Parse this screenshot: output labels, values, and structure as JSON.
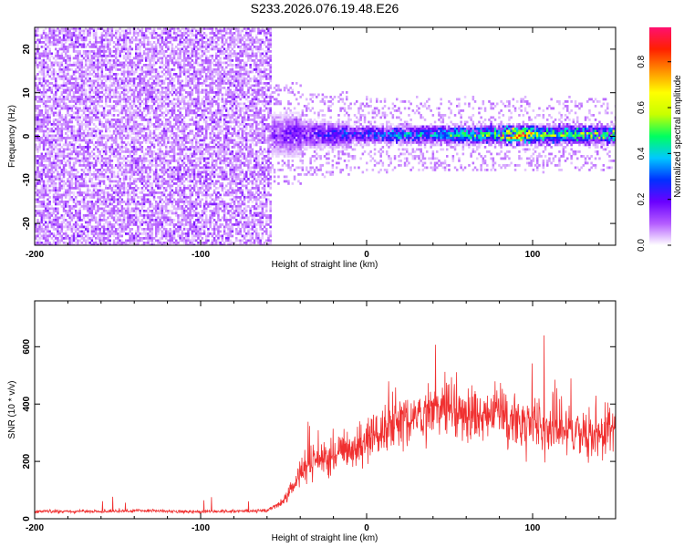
{
  "title": "S233.2026.076.19.48.E26",
  "chart_data": [
    {
      "type": "heatmap",
      "xlabel": "Height of straight line (km)",
      "ylabel": "Frequency (Hz)",
      "xlim": [
        -200,
        150
      ],
      "ylim": [
        -25,
        25
      ],
      "x_ticks": [
        -200,
        -100,
        0,
        100
      ],
      "y_ticks": [
        -20,
        -10,
        0,
        10,
        20
      ],
      "noise_region_x": [
        -200,
        -57
      ],
      "signal_band": {
        "start_x": -57,
        "end_x": 150,
        "center_frequency": 0.5,
        "peak_amplitude": 0.95,
        "peak_region_x": [
          80,
          100
        ]
      },
      "colorbar": {
        "label": "Normalized spectral amplitude",
        "range": [
          0.0,
          0.95
        ],
        "ticks": [
          0.0,
          0.2,
          0.4,
          0.6,
          0.8
        ],
        "colormap": [
          "#ffffff",
          "#b45cff",
          "#6a00ff",
          "#0030ff",
          "#00c8ff",
          "#00ff60",
          "#c8ff00",
          "#ffff00",
          "#ff9000",
          "#ff2000",
          "#ff1070"
        ]
      },
      "grid": false
    },
    {
      "type": "line",
      "xlabel": "Height of straight line (km)",
      "ylabel": "SNR (10 * v/v)",
      "xlim": [
        -200,
        150
      ],
      "ylim": [
        0,
        760
      ],
      "x_ticks": [
        -200,
        -100,
        0,
        100
      ],
      "y_ticks": [
        0,
        200,
        400,
        600
      ],
      "color": "#f03030",
      "series": [
        {
          "x": [
            -200,
            -180,
            -160,
            -140,
            -120,
            -100,
            -80,
            -60,
            -50,
            -40,
            -35,
            -30,
            -20,
            -10,
            0,
            10,
            20,
            30,
            40,
            50,
            60,
            70,
            80,
            90,
            100,
            110,
            120,
            130,
            140,
            145,
            150
          ],
          "y": [
            25,
            25,
            26,
            28,
            26,
            25,
            26,
            28,
            60,
            150,
            190,
            200,
            220,
            250,
            270,
            300,
            330,
            360,
            370,
            380,
            360,
            360,
            360,
            340,
            330,
            320,
            310,
            300,
            290,
            310,
            320
          ]
        }
      ],
      "grid": false
    }
  ]
}
